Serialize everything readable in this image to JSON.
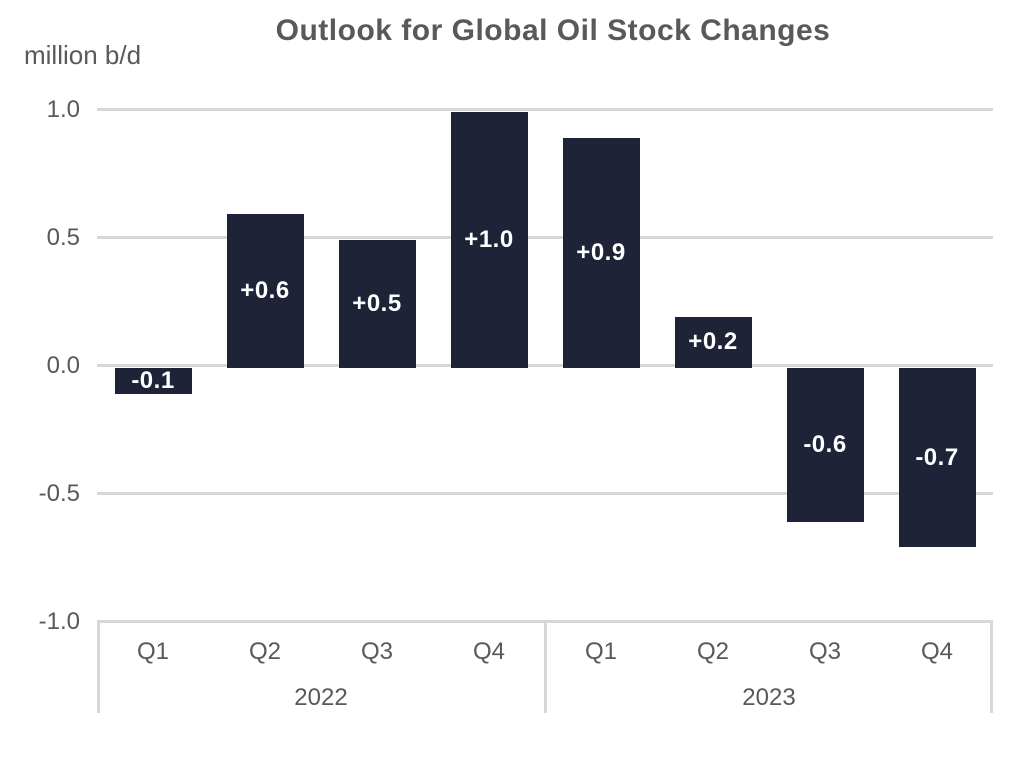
{
  "title": "Outlook for Global Oil Stock Changes",
  "unit_label": "million b/d",
  "colors": {
    "bar": "#1e2337",
    "gridline": "#d8d8d8",
    "axis_text": "#58595b",
    "bar_label_text": "#ffffff",
    "background": "#ffffff"
  },
  "chart_data": {
    "type": "bar",
    "title": "Outlook for Global Oil Stock Changes",
    "ylabel": "million b/d",
    "ylim": [
      -1.0,
      1.0
    ],
    "ytick_labels": [
      "1.0",
      "0.5",
      "0.0",
      "-0.5",
      "-1.0"
    ],
    "yticks": [
      1.0,
      0.5,
      0.0,
      -0.5,
      -1.0
    ],
    "categories": [
      "Q1",
      "Q2",
      "Q3",
      "Q4",
      "Q1",
      "Q2",
      "Q3",
      "Q4"
    ],
    "groups": [
      {
        "label": "2022",
        "span": 4
      },
      {
        "label": "2023",
        "span": 4
      }
    ],
    "values": [
      -0.1,
      0.6,
      0.5,
      1.0,
      0.9,
      0.2,
      -0.6,
      -0.7
    ],
    "bar_labels": [
      "-0.1",
      "+0.6",
      "+0.5",
      "+1.0",
      "+0.9",
      "+0.2",
      "-0.6",
      "-0.7"
    ],
    "grid": true,
    "legend": false
  }
}
